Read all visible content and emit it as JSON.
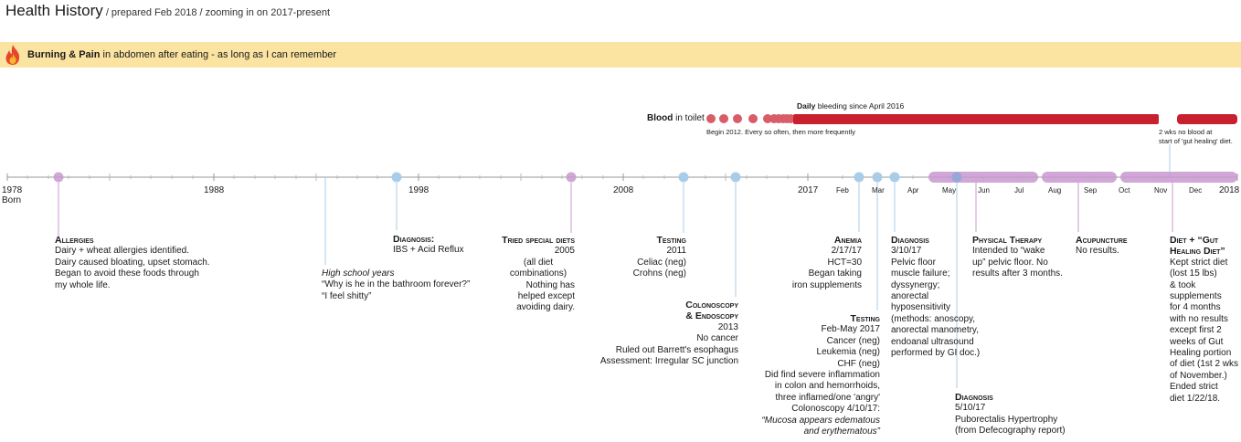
{
  "header": {
    "title": "Health History",
    "subtitle": " / prepared Feb 2018 / zooming in on 2017-present"
  },
  "banner": {
    "bold": "Burning & Pain",
    "text": " in abdomen after eating - as long as I can remember"
  },
  "bleeding": {
    "blood_bold": "Blood",
    "blood_text": " in toilet",
    "daily_bold": "Daily",
    "daily_text": " bleeding since April 2016",
    "begin_note": "Begin 2012. Every so often, then more frequently",
    "gap_note_1": "2 wks no blood at",
    "gap_note_2": "start of 'gut healing' diet."
  },
  "axis": {
    "years": [
      {
        "label": "1978",
        "sub": "Born"
      },
      {
        "label": "1988"
      },
      {
        "label": "1998"
      },
      {
        "label": "2008"
      },
      {
        "label": "2017"
      },
      {
        "label": "2018"
      }
    ],
    "months": [
      "Feb",
      "Mar",
      "Apr",
      "May",
      "Jun",
      "Jul",
      "Aug",
      "Sep",
      "Oct",
      "Nov",
      "Dec"
    ]
  },
  "events": {
    "allergies": {
      "head": "Allergies",
      "lines": [
        "Dairy + wheat allergies identified.",
        "Dairy caused bloating, upset stomach.",
        "Began to avoid these foods through",
        "my whole life."
      ]
    },
    "highschool": {
      "italic": "High school years",
      "lines": [
        "“Why is he in the bathroom forever?”",
        "“I feel shitty”"
      ]
    },
    "diag1998": {
      "head": "Diagnosis:",
      "lines": [
        "IBS + Acid Reflux"
      ]
    },
    "diets": {
      "head": "Tried special diets",
      "lines": [
        "2005",
        "(all diet",
        "combinations)",
        "Nothing has",
        "helped except",
        "avoiding dairy."
      ]
    },
    "testing2011": {
      "head": "Testing",
      "lines": [
        "2011",
        "Celiac (neg)",
        "Crohns (neg)"
      ]
    },
    "colonoscopy": {
      "head1": "Colonoscopy",
      "head2": "& Endoscopy",
      "lines": [
        "2013",
        "No cancer",
        "Ruled out Barrett's esophagus",
        "Assessment: Irregular SC junction"
      ]
    },
    "anemia": {
      "head": "Anemia",
      "lines": [
        "2/17/17",
        "HCT=30",
        "Began taking",
        "iron supplements"
      ]
    },
    "testing2017": {
      "head": "Testing",
      "lines": [
        "Feb-May 2017",
        "Cancer (neg)",
        "Leukemia (neg)",
        "CHF (neg)",
        "Did find severe inflammation",
        "in colon and hemorrhoids,",
        "three inflamed/one 'angry'",
        "Colonoscopy 4/10/17:"
      ],
      "italics": [
        "“Mucosa appears edematous",
        "and erythematous”"
      ]
    },
    "diag310": {
      "head": "Diagnosis",
      "lines": [
        "3/10/17",
        "Pelvic floor",
        "muscle failure;",
        "dyssynergy;",
        "anorectal",
        "hyposensitivity",
        "(methods: anoscopy,",
        "anorectal manometry,",
        "endoanal ultrasound",
        "performed by GI doc.)"
      ]
    },
    "diag510": {
      "head": "Diagnosis",
      "lines": [
        "5/10/17",
        "Puborectalis Hypertrophy",
        "(from Defecography report)"
      ]
    },
    "pt": {
      "head": "Physical Therapy",
      "lines": [
        "Intended to “wake",
        "up” pelvic floor. No",
        "results after 3 months."
      ]
    },
    "acupuncture": {
      "head": "Acupuncture",
      "lines": [
        "No results."
      ]
    },
    "diet": {
      "head1": "Diet + “Gut",
      "head2": "Healing Diet”",
      "lines": [
        "Kept strict diet",
        "(lost 15 lbs)",
        "& took",
        "supplements",
        "for 4 months",
        "with no results",
        "except first 2",
        "weeks of Gut",
        "Healing portion",
        "of diet (1st 2 wks",
        "of November.)",
        "Ended strict",
        "diet 1/22/18."
      ]
    }
  },
  "colors": {
    "banner": "#fbe3a2",
    "blood": "#c8202f",
    "blood_dot": "#d95d68",
    "blue_dot": "#a9cde8",
    "purple": "#c898cf",
    "axis": "#999999"
  }
}
